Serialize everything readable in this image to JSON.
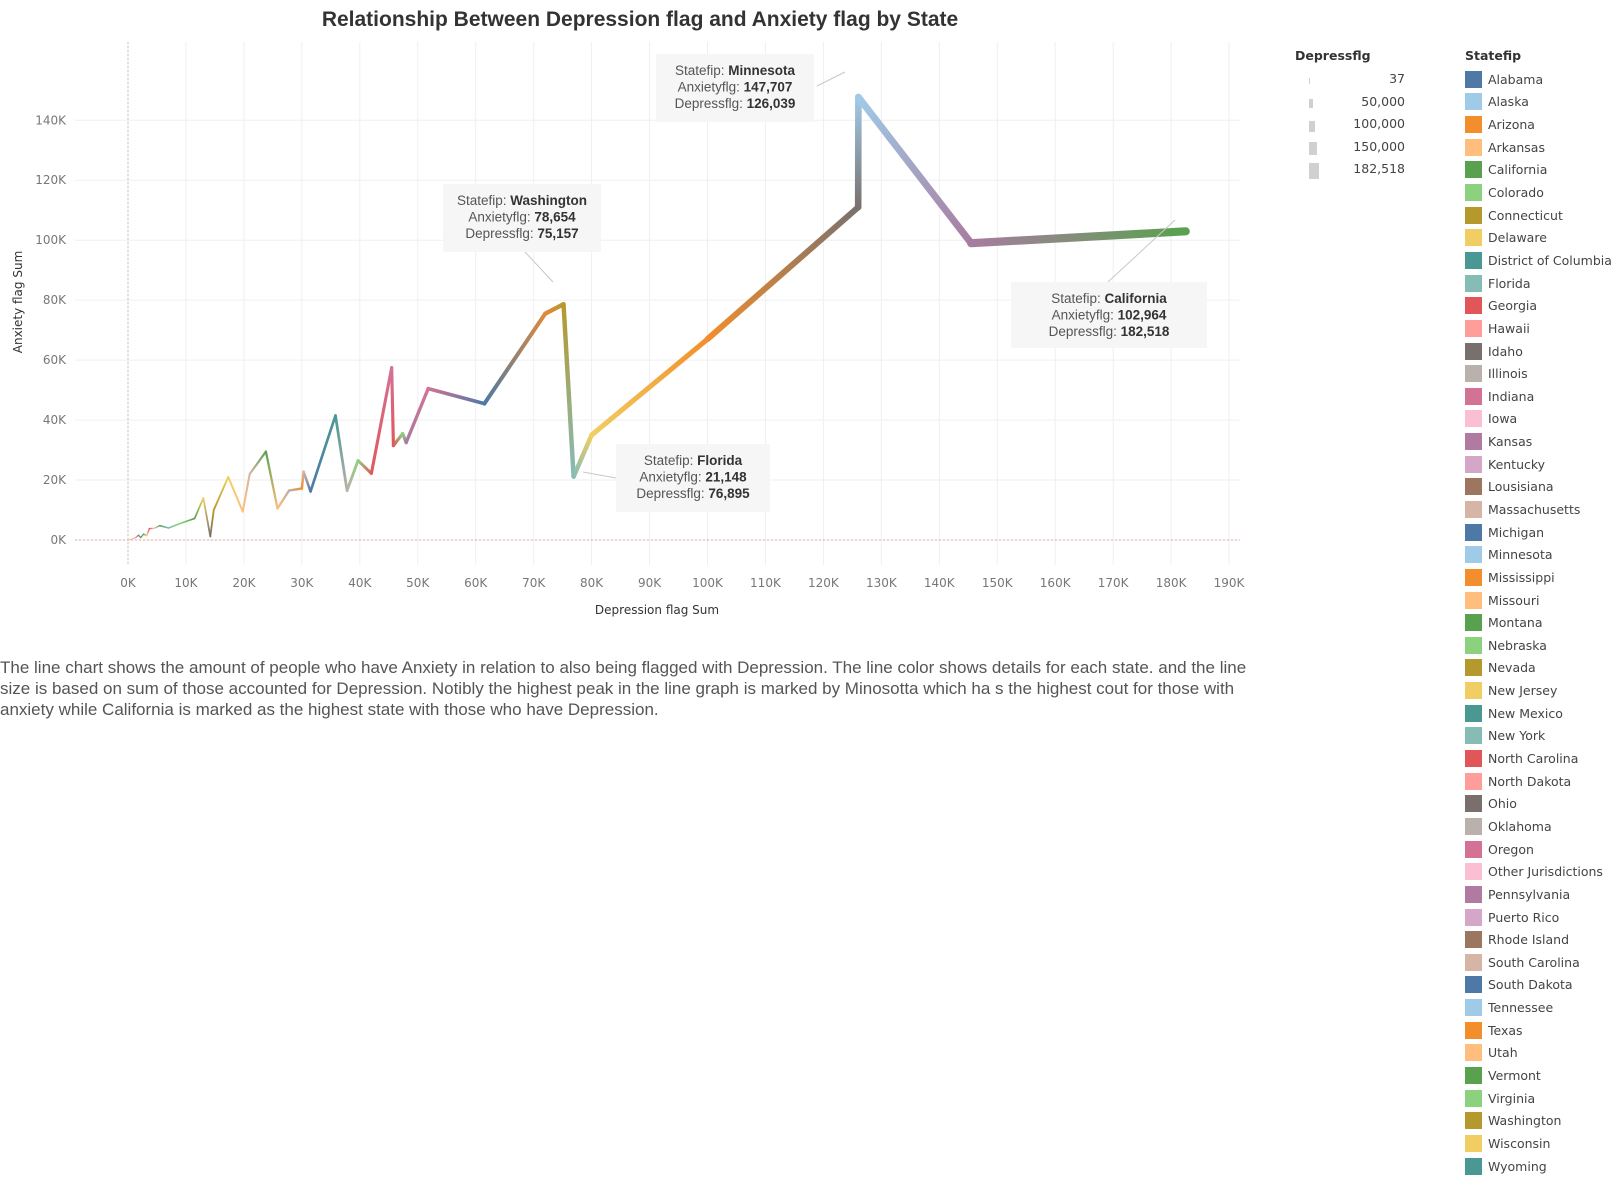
{
  "chart_data": {
    "type": "line",
    "title": "Relationship Between Depression flag and Anxiety flag by State",
    "xlabel": "Depression flag Sum",
    "ylabel": "Anxiety flag Sum",
    "xlim": [
      -9000,
      192000
    ],
    "ylim": [
      -8000,
      156000
    ],
    "x_ticks": [
      0,
      10000,
      20000,
      30000,
      40000,
      50000,
      60000,
      70000,
      80000,
      90000,
      100000,
      110000,
      120000,
      130000,
      140000,
      150000,
      160000,
      170000,
      180000,
      190000
    ],
    "x_tick_labels": [
      "0K",
      "10K",
      "20K",
      "30K",
      "40K",
      "50K",
      "60K",
      "70K",
      "80K",
      "90K",
      "100K",
      "110K",
      "120K",
      "130K",
      "140K",
      "150K",
      "160K",
      "170K",
      "180K",
      "190K"
    ],
    "y_ticks": [
      0,
      20000,
      40000,
      60000,
      80000,
      100000,
      120000,
      140000
    ],
    "y_tick_labels": [
      "0K",
      "20K",
      "40K",
      "60K",
      "80K",
      "100K",
      "120K",
      "140K"
    ],
    "grid": true,
    "points": [
      {
        "x": 37,
        "y": 40,
        "color": "#f1ce63"
      },
      {
        "x": 700,
        "y": 300,
        "color": "#ffbed2"
      },
      {
        "x": 1300,
        "y": 800,
        "color": "#d4a6c8"
      },
      {
        "x": 1800,
        "y": 1600,
        "color": "#9d7660"
      },
      {
        "x": 2200,
        "y": 800,
        "color": "#59a14f"
      },
      {
        "x": 2700,
        "y": 2000,
        "color": "#499894"
      },
      {
        "x": 3200,
        "y": 1400,
        "color": "#f1ce63"
      },
      {
        "x": 3700,
        "y": 3800,
        "color": "#e15759"
      },
      {
        "x": 4500,
        "y": 3900,
        "color": "#fabfd2"
      },
      {
        "x": 5500,
        "y": 4800,
        "color": "#59a14f"
      },
      {
        "x": 7000,
        "y": 4000,
        "color": "#86bcb6"
      },
      {
        "x": 9000,
        "y": 5500,
        "color": "#8cd17d"
      },
      {
        "x": 11500,
        "y": 7200,
        "color": "#59a14f"
      },
      {
        "x": 13000,
        "y": 14000,
        "color": "#f1ce63"
      },
      {
        "x": 14200,
        "y": 1200,
        "color": "#79706e"
      },
      {
        "x": 14800,
        "y": 10000,
        "color": "#b6992d"
      },
      {
        "x": 17300,
        "y": 21000,
        "color": "#f1ce63"
      },
      {
        "x": 19800,
        "y": 9500,
        "color": "#ffbe7d"
      },
      {
        "x": 21000,
        "y": 22000,
        "color": "#d7b5a6"
      },
      {
        "x": 23800,
        "y": 29500,
        "color": "#59a14f"
      },
      {
        "x": 25800,
        "y": 10500,
        "color": "#ffbe7d"
      },
      {
        "x": 27800,
        "y": 16500,
        "color": "#bab0ac"
      },
      {
        "x": 30000,
        "y": 17200,
        "color": "#f28e2b"
      },
      {
        "x": 30300,
        "y": 22800,
        "color": "#d7b5a6"
      },
      {
        "x": 31500,
        "y": 16200,
        "color": "#4e79a7"
      },
      {
        "x": 35800,
        "y": 41500,
        "color": "#499894"
      },
      {
        "x": 37800,
        "y": 16500,
        "color": "#bab0ac"
      },
      {
        "x": 39700,
        "y": 26500,
        "color": "#8cd17d"
      },
      {
        "x": 42000,
        "y": 22200,
        "color": "#e15759"
      },
      {
        "x": 45500,
        "y": 57500,
        "color": "#d37295"
      },
      {
        "x": 45800,
        "y": 31500,
        "color": "#e15759"
      },
      {
        "x": 47400,
        "y": 35500,
        "color": "#8cd17d"
      },
      {
        "x": 48000,
        "y": 32500,
        "color": "#a87c9f"
      },
      {
        "x": 51800,
        "y": 50500,
        "color": "#d37295"
      },
      {
        "x": 61500,
        "y": 45500,
        "color": "#4e79a7"
      },
      {
        "x": 72000,
        "y": 75500,
        "color": "#e08a3a"
      },
      {
        "x": 75157,
        "y": 78654,
        "color": "#b6992d"
      },
      {
        "x": 76895,
        "y": 21148,
        "color": "#86bcb6"
      },
      {
        "x": 80000,
        "y": 35000,
        "color": "#f1ce63"
      },
      {
        "x": 100000,
        "y": 67000,
        "color": "#f28e2b"
      },
      {
        "x": 126000,
        "y": 111000,
        "color": "#79706e"
      },
      {
        "x": 126039,
        "y": 147707,
        "color": "#a0cbe8"
      },
      {
        "x": 145500,
        "y": 99000,
        "color": "#a87c9f"
      },
      {
        "x": 182518,
        "y": 102964,
        "color": "#59a14f"
      }
    ],
    "size_legend": {
      "title": "Depressflg",
      "values": [
        37,
        50000,
        100000,
        150000,
        182518
      ],
      "labels": [
        "37",
        "50,000",
        "100,000",
        "150,000",
        "182,518"
      ]
    },
    "color_legend": {
      "title": "Statefip",
      "items": [
        {
          "label": "Alabama",
          "color": "#4e79a7"
        },
        {
          "label": "Alaska",
          "color": "#a0cbe8"
        },
        {
          "label": "Arizona",
          "color": "#f28e2b"
        },
        {
          "label": "Arkansas",
          "color": "#ffbe7d"
        },
        {
          "label": "California",
          "color": "#59a14f"
        },
        {
          "label": "Colorado",
          "color": "#8cd17d"
        },
        {
          "label": "Connecticut",
          "color": "#b6992d"
        },
        {
          "label": "Delaware",
          "color": "#f1ce63"
        },
        {
          "label": "District of Columbia",
          "color": "#499894"
        },
        {
          "label": "Florida",
          "color": "#86bcb6"
        },
        {
          "label": "Georgia",
          "color": "#e15759"
        },
        {
          "label": "Hawaii",
          "color": "#ff9d9a"
        },
        {
          "label": "Idaho",
          "color": "#79706e"
        },
        {
          "label": "Illinois",
          "color": "#bab0ac"
        },
        {
          "label": "Indiana",
          "color": "#d37295"
        },
        {
          "label": "Iowa",
          "color": "#fabfd2"
        },
        {
          "label": "Kansas",
          "color": "#b07aa1"
        },
        {
          "label": "Kentucky",
          "color": "#d4a6c8"
        },
        {
          "label": "Lousisiana",
          "color": "#9d7660"
        },
        {
          "label": "Massachusetts",
          "color": "#d7b5a6"
        },
        {
          "label": "Michigan",
          "color": "#4e79a7"
        },
        {
          "label": "Minnesota",
          "color": "#a0cbe8"
        },
        {
          "label": "Mississippi",
          "color": "#f28e2b"
        },
        {
          "label": "Missouri",
          "color": "#ffbe7d"
        },
        {
          "label": "Montana",
          "color": "#59a14f"
        },
        {
          "label": "Nebraska",
          "color": "#8cd17d"
        },
        {
          "label": "Nevada",
          "color": "#b6992d"
        },
        {
          "label": "New Jersey",
          "color": "#f1ce63"
        },
        {
          "label": "New Mexico",
          "color": "#499894"
        },
        {
          "label": "New York",
          "color": "#86bcb6"
        },
        {
          "label": "North Carolina",
          "color": "#e15759"
        },
        {
          "label": "North Dakota",
          "color": "#ff9d9a"
        },
        {
          "label": "Ohio",
          "color": "#79706e"
        },
        {
          "label": "Oklahoma",
          "color": "#bab0ac"
        },
        {
          "label": "Oregon",
          "color": "#d37295"
        },
        {
          "label": "Other Jurisdictions",
          "color": "#fabfd2"
        },
        {
          "label": "Pennsylvania",
          "color": "#b07aa1"
        },
        {
          "label": "Puerto Rico",
          "color": "#d4a6c8"
        },
        {
          "label": "Rhode Island",
          "color": "#9d7660"
        },
        {
          "label": "South Carolina",
          "color": "#d7b5a6"
        },
        {
          "label": "South Dakota",
          "color": "#4e79a7"
        },
        {
          "label": "Tennessee",
          "color": "#a0cbe8"
        },
        {
          "label": "Texas",
          "color": "#f28e2b"
        },
        {
          "label": "Utah",
          "color": "#ffbe7d"
        },
        {
          "label": "Vermont",
          "color": "#59a14f"
        },
        {
          "label": "Virginia",
          "color": "#8cd17d"
        },
        {
          "label": "Washington",
          "color": "#b6992d"
        },
        {
          "label": "Wisconsin",
          "color": "#f1ce63"
        },
        {
          "label": "Wyoming",
          "color": "#499894"
        }
      ]
    },
    "annotations": [
      {
        "state_key": "Statefip:",
        "state": "Minnesota",
        "anx_key": "Anxietyflg:",
        "anx": "147,707",
        "dep_key": "Depressflg:",
        "dep": "126,039",
        "target": [
          126039,
          147707
        ],
        "placement": "left"
      },
      {
        "state_key": "Statefip:",
        "state": "Washington",
        "anx_key": "Anxietyflg:",
        "anx": "78,654",
        "dep_key": "Depressflg:",
        "dep": "75,157",
        "target": [
          75157,
          78654
        ],
        "placement": "top-left"
      },
      {
        "state_key": "Statefip:",
        "state": "Florida",
        "anx_key": "Anxietyflg:",
        "anx": "21,148",
        "dep_key": "Depressflg:",
        "dep": "76,895",
        "target": [
          76895,
          21148
        ],
        "placement": "right"
      },
      {
        "state_key": "Statefip:",
        "state": "California",
        "anx_key": "Anxietyflg:",
        "anx": "102,964",
        "dep_key": "Depressflg:",
        "dep": "182,518",
        "target": [
          182518,
          102964
        ],
        "placement": "bottom-left"
      }
    ]
  },
  "description": "The line chart shows the amount of people who have Anxiety in relation to also being flagged with Depression.  The line color shows details for each state. and the line size is based on sum of those accounted for Depression. Notibly the highest peak in the line graph is marked by Minosotta which ha s the highest cout for those with anxiety while California is marked as the highest state with those who have Depression."
}
